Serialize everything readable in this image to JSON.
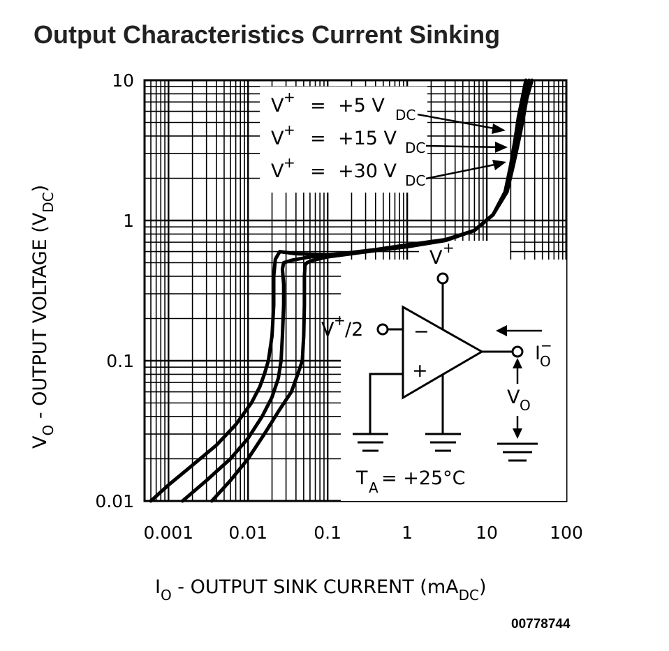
{
  "title": "Output Characteristics Current Sinking",
  "figure_id": "00778744",
  "chart_data": {
    "type": "line",
    "xscale": "log",
    "yscale": "log",
    "xlim": [
      0.0005,
      100
    ],
    "ylim": [
      0.01,
      10
    ],
    "x_tick_labels": [
      "0.001",
      "0.01",
      "0.1",
      "1",
      "10",
      "100"
    ],
    "x_ticks": [
      0.001,
      0.01,
      0.1,
      1,
      10,
      100
    ],
    "y_tick_labels": [
      "10",
      "1",
      "0.1",
      "0.01"
    ],
    "y_ticks": [
      10,
      1,
      0.1,
      0.01
    ],
    "xlabel": {
      "main": "I",
      "sub": "O",
      "rest": " - OUTPUT SINK CURRENT (mA",
      "sub2": "DC",
      "end": ")"
    },
    "ylabel": {
      "main": "V",
      "sub": "O",
      "rest": " - OUTPUT VOLTAGE (V",
      "sub2": "DC",
      "end": ")"
    },
    "grid": true,
    "legend": [
      {
        "pre": "V",
        "sup": "+",
        "eq": "=",
        "val": "+5 V",
        "sub": "DC"
      },
      {
        "pre": "V",
        "sup": "+",
        "eq": "=",
        "val": "+15 V",
        "sub": "DC"
      },
      {
        "pre": "V",
        "sup": "+",
        "eq": "=",
        "val": "+30 V",
        "sub": "DC"
      }
    ],
    "series": [
      {
        "x": [
          0.0006,
          0.001,
          0.002,
          0.004,
          0.007,
          0.011,
          0.014,
          0.016,
          0.018,
          0.02,
          0.021,
          0.021,
          0.022,
          0.025,
          0.04,
          0.1,
          0.3,
          1,
          3,
          7,
          12,
          17,
          20,
          23,
          25,
          28,
          31
        ],
        "y": [
          0.01,
          0.013,
          0.018,
          0.025,
          0.035,
          0.05,
          0.065,
          0.08,
          0.1,
          0.15,
          0.25,
          0.4,
          0.53,
          0.6,
          0.58,
          0.57,
          0.6,
          0.65,
          0.72,
          0.85,
          1.1,
          1.6,
          2.5,
          4,
          5.5,
          7.5,
          10
        ]
      },
      {
        "x": [
          0.0015,
          0.003,
          0.006,
          0.01,
          0.015,
          0.02,
          0.024,
          0.026,
          0.027,
          0.028,
          0.028,
          0.027,
          0.028,
          0.035,
          0.06,
          0.15,
          0.4,
          1,
          3,
          7,
          12,
          17,
          21,
          24,
          27,
          30,
          34
        ],
        "y": [
          0.01,
          0.014,
          0.02,
          0.028,
          0.04,
          0.055,
          0.075,
          0.1,
          0.15,
          0.25,
          0.35,
          0.45,
          0.5,
          0.52,
          0.55,
          0.58,
          0.62,
          0.67,
          0.73,
          0.85,
          1.1,
          1.6,
          2.6,
          4,
          5.5,
          7.5,
          10
        ]
      },
      {
        "x": [
          0.0035,
          0.006,
          0.01,
          0.016,
          0.025,
          0.035,
          0.042,
          0.048,
          0.05,
          0.051,
          0.051,
          0.052,
          0.055,
          0.065,
          0.1,
          0.2,
          0.5,
          1,
          3,
          7,
          12,
          18,
          22,
          26,
          29,
          32,
          37
        ],
        "y": [
          0.01,
          0.014,
          0.02,
          0.03,
          0.045,
          0.06,
          0.08,
          0.1,
          0.15,
          0.25,
          0.4,
          0.48,
          0.5,
          0.52,
          0.55,
          0.58,
          0.62,
          0.67,
          0.72,
          0.85,
          1.1,
          1.6,
          2.6,
          4,
          5.5,
          7.5,
          10
        ]
      }
    ],
    "inset": {
      "supply": {
        "pre": "V",
        "sup": "+"
      },
      "input": {
        "pre": "V",
        "sup": "+",
        "rest": "/2"
      },
      "minus": "−",
      "plus": "+",
      "current": {
        "pre": "I",
        "sub": "O",
        "sup": "−"
      },
      "vout": {
        "pre": "V",
        "sub": "O"
      },
      "temp": {
        "pre": "T",
        "sub": "A",
        "rest": " = +25°C"
      }
    }
  }
}
